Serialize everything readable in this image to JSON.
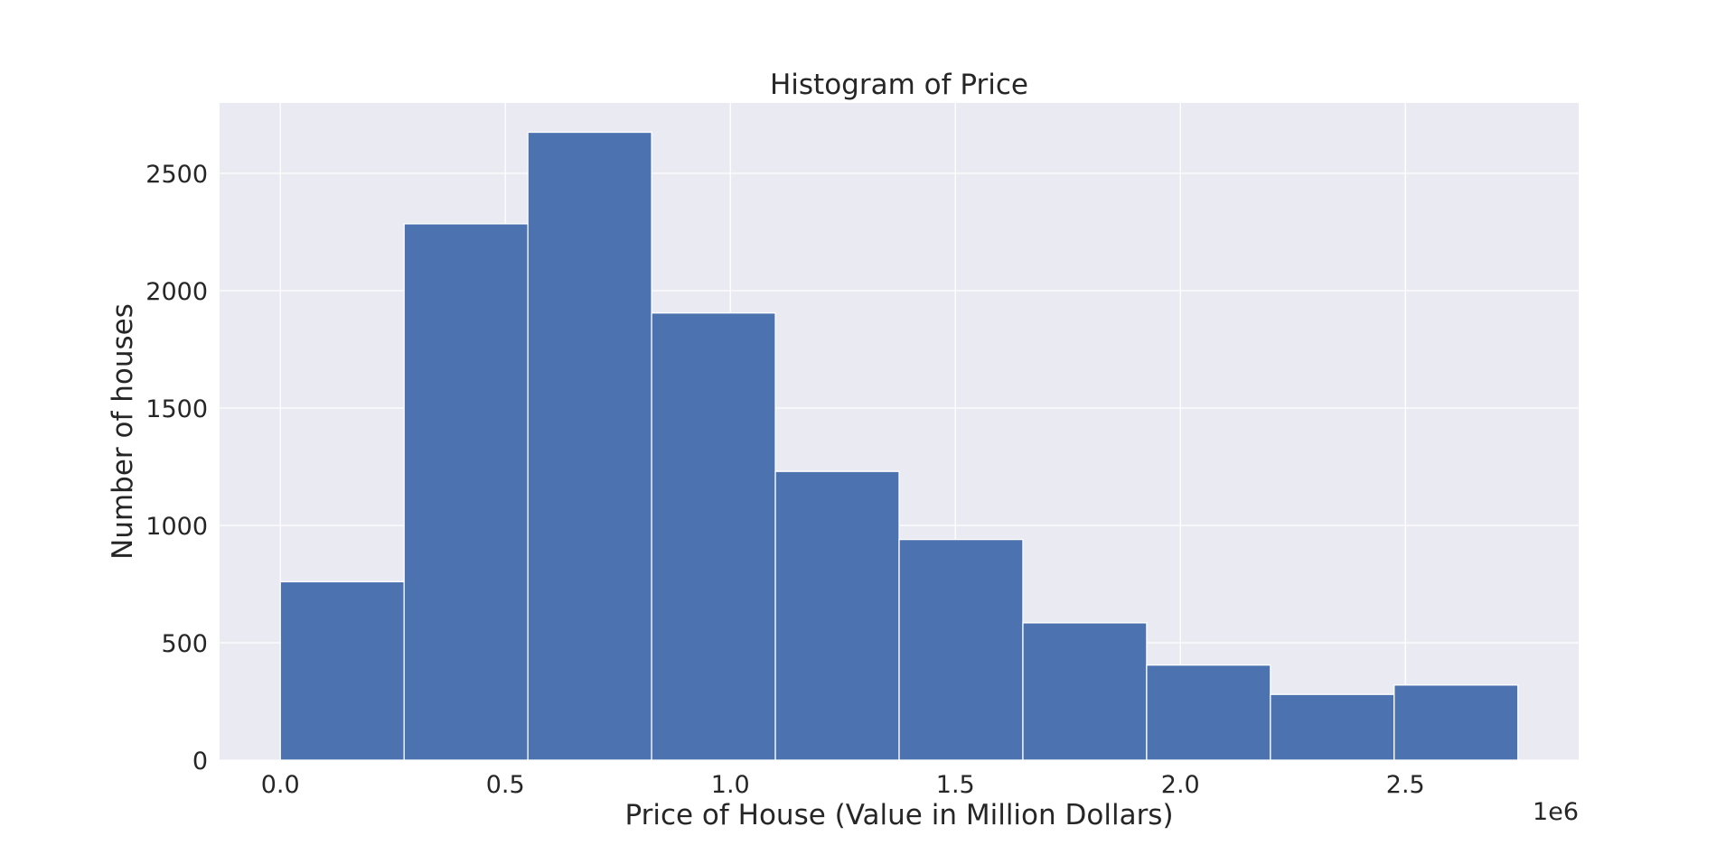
{
  "chart_data": {
    "type": "bar",
    "title": "Histogram of Price",
    "xlabel": "Price of House (Value in Million Dollars)",
    "ylabel": "Number of houses",
    "x_offset_label": "1e6",
    "bin_edges": [
      0,
      275000,
      550000,
      825000,
      1100000,
      1375000,
      1650000,
      1925000,
      2200000,
      2475000,
      2750000
    ],
    "values": [
      760,
      2285,
      2675,
      1905,
      1230,
      940,
      585,
      405,
      280,
      320
    ],
    "xlim": [
      -135000,
      2885000
    ],
    "ylim": [
      0,
      2800
    ],
    "xticks": [
      0,
      500000,
      1000000,
      1500000,
      2000000,
      2500000
    ],
    "xtick_labels": [
      "0.0",
      "0.5",
      "1.0",
      "1.5",
      "2.0",
      "2.5"
    ],
    "yticks": [
      0,
      500,
      1000,
      1500,
      2000,
      2500
    ],
    "ytick_labels": [
      "0",
      "500",
      "1000",
      "1500",
      "2000",
      "2500"
    ],
    "grid": true,
    "colors": {
      "bar": "#4c72b0",
      "background": "#eaeaf2",
      "grid": "#ffffff",
      "text": "#262626"
    }
  }
}
